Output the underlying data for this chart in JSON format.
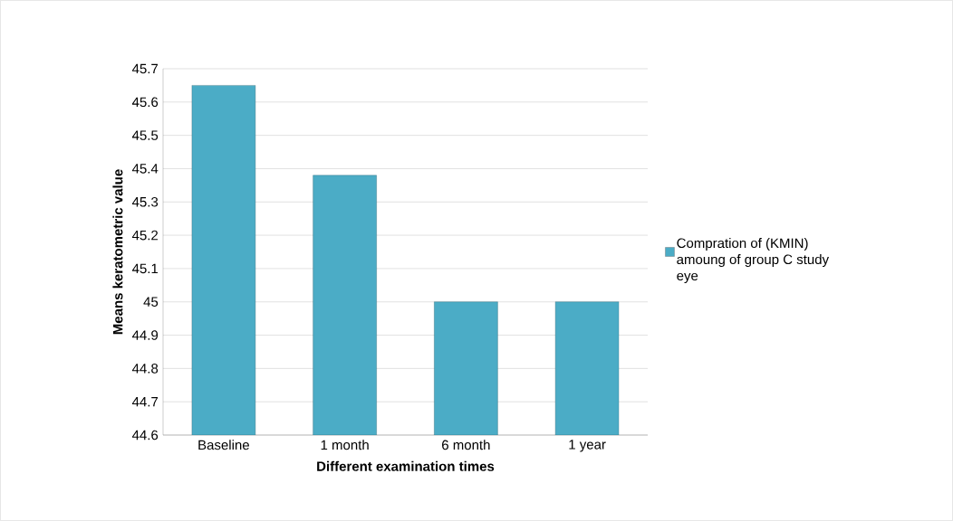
{
  "chart_data": {
    "type": "bar",
    "xlabel": "Different examination times",
    "ylabel": "Means keratometric value",
    "categories": [
      "Baseline",
      "1 month",
      "6 month",
      "1 year"
    ],
    "series": [
      {
        "name": "Compration of (KMIN) amoung of  group C study eye",
        "color": "#4bacc6",
        "values": [
          45.65,
          45.38,
          45.0,
          45.0
        ]
      }
    ],
    "ylim": [
      44.6,
      45.7
    ],
    "yticks": [
      44.6,
      44.7,
      44.8,
      44.9,
      45,
      45.1,
      45.2,
      45.3,
      45.4,
      45.5,
      45.6,
      45.7
    ],
    "grid": "y",
    "legend": "right"
  }
}
